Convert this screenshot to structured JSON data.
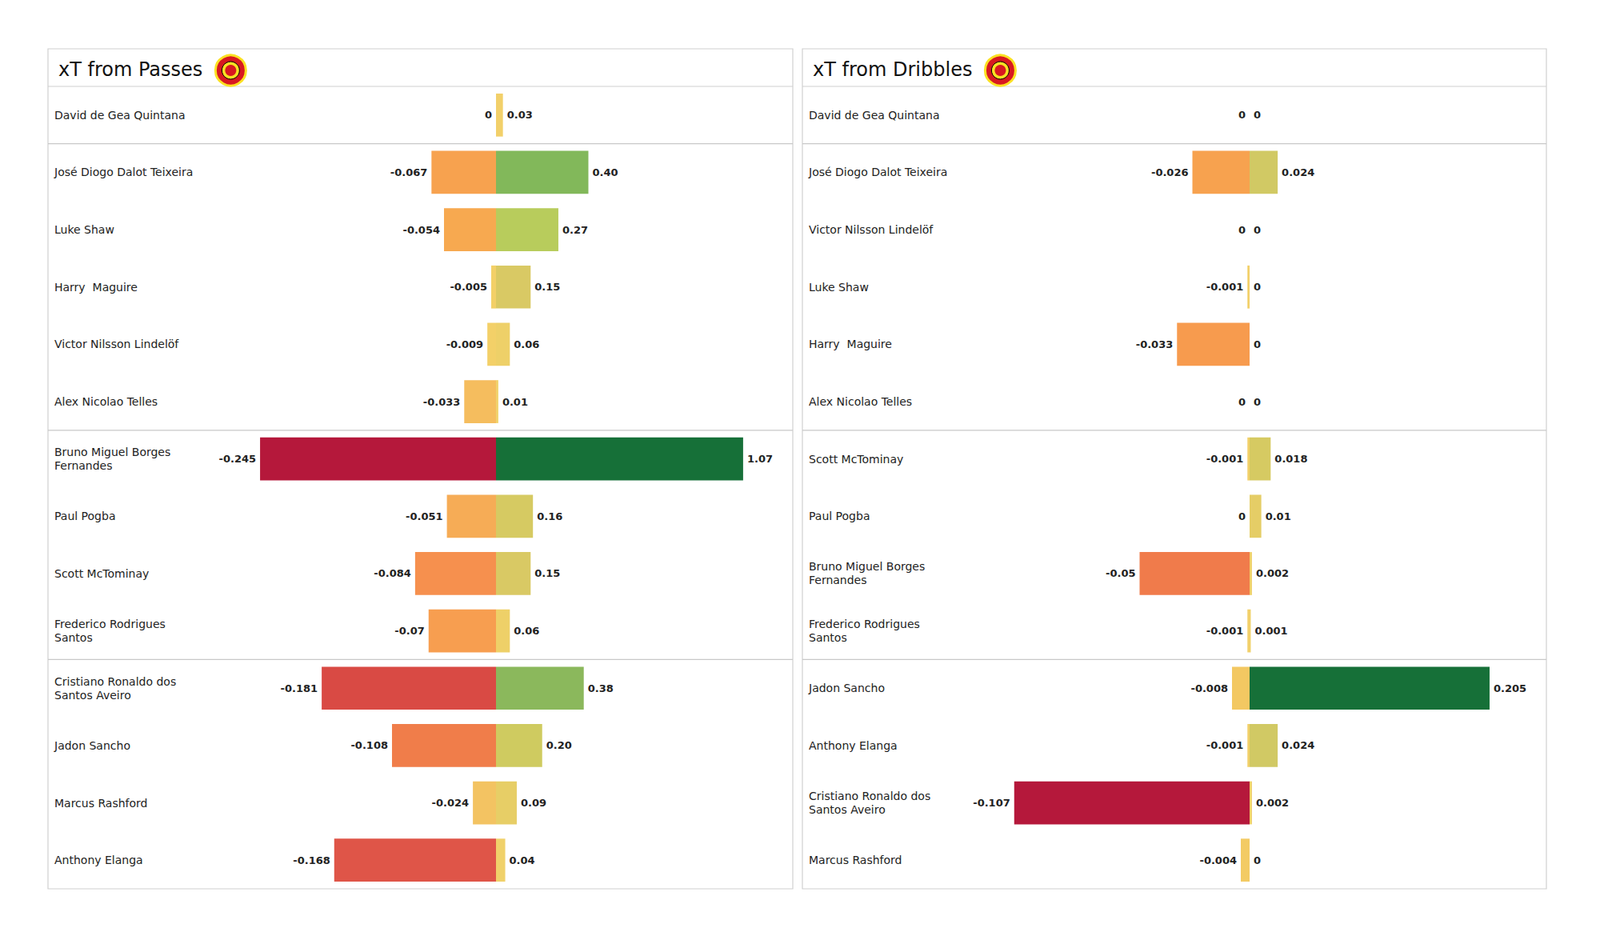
{
  "chart_data": [
    {
      "type": "bar",
      "title": "xT from Passes",
      "orientation": "horizontal",
      "data_labels": true,
      "tick_labels": "y",
      "grid": false,
      "categories": [
        "David de Gea Quintana",
        "José Diogo Dalot Teixeira",
        "Luke Shaw",
        "Harry  Maguire",
        "Victor Nilsson Lindelöf",
        "Alex Nicolao Telles",
        "Bruno Miguel Borges\nFernandes",
        "Paul Pogba",
        "Scott McTominay",
        "Frederico Rodrigues\nSantos",
        "Cristiano Ronaldo dos\nSantos Aveiro",
        "Jadon Sancho",
        "Marcus Rashford",
        "Anthony Elanga"
      ],
      "groups": [
        1,
        5,
        4,
        4
      ],
      "series": [
        {
          "values": [
            0,
            -0.067,
            -0.054,
            -0.005,
            -0.009,
            -0.033,
            -0.245,
            -0.051,
            -0.084,
            -0.07,
            -0.181,
            -0.108,
            -0.024,
            -0.168
          ],
          "colors": [
            "#f2d06a",
            "#f7a24f",
            "#f7a950",
            "#f3d068",
            "#f3d068",
            "#f5bd5e",
            "#b5183b",
            "#f6ac56",
            "#f6904e",
            "#f79e50",
            "#d94a44",
            "#f07d4a",
            "#f3c362",
            "#df5548"
          ],
          "xlim": [
            -0.265,
            0.265
          ]
        },
        {
          "values": [
            0.03,
            0.4,
            0.27,
            0.15,
            0.06,
            0.01,
            1.07,
            0.16,
            0.15,
            0.06,
            0.38,
            0.2,
            0.09,
            0.04
          ],
          "value_labels": [
            "0.03",
            "0.40",
            "0.27",
            "0.15",
            "0.06",
            "0.01",
            "1.07",
            "0.16",
            "0.15",
            "0.06",
            "0.38",
            "0.20",
            "0.09",
            "0.04"
          ],
          "colors": [
            "#f2d06a",
            "#82b85a",
            "#b8cc5c",
            "#d9c964",
            "#eed068",
            "#f1d26b",
            "#167038",
            "#d6ca62",
            "#d9c964",
            "#eed068",
            "#8bb85c",
            "#cfcb60",
            "#e7ce66",
            "#f0d16a"
          ],
          "xlim": [
            -1.105,
            1.105
          ]
        }
      ]
    },
    {
      "type": "bar",
      "title": "xT from Dribbles",
      "orientation": "horizontal",
      "data_labels": true,
      "tick_labels": "y",
      "grid": false,
      "categories": [
        "David de Gea Quintana",
        "José Diogo Dalot Teixeira",
        "Victor Nilsson Lindelöf",
        "Luke Shaw",
        "Harry  Maguire",
        "Alex Nicolao Telles",
        "Scott McTominay",
        "Paul Pogba",
        "Bruno Miguel Borges\nFernandes",
        "Frederico Rodrigues\nSantos",
        "Jadon Sancho",
        "Anthony Elanga",
        "Cristiano Ronaldo dos\nSantos Aveiro",
        "Marcus Rashford"
      ],
      "groups": [
        1,
        5,
        4,
        4
      ],
      "series": [
        {
          "values": [
            0,
            -0.026,
            0,
            -0.001,
            -0.033,
            0,
            -0.001,
            0,
            -0.05,
            -0.001,
            -0.008,
            -0.001,
            -0.107,
            -0.004
          ],
          "colors": [
            "#f2d06a",
            "#f7a24f",
            "#f2d06a",
            "#f2d06a",
            "#f79b4e",
            "#f2d06a",
            "#f2d06a",
            "#f2d06a",
            "#f07b4b",
            "#f2d06a",
            "#f3c862",
            "#f2d06a",
            "#b5183b",
            "#f3cb64"
          ],
          "xlim": [
            -0.116,
            0.116
          ]
        },
        {
          "values": [
            0,
            0.024,
            0,
            0,
            0,
            0,
            0.018,
            0.01,
            0.002,
            0.001,
            0.205,
            0.024,
            0.002,
            0
          ],
          "colors": [
            "#f2d06a",
            "#d1c964",
            "#f2d06a",
            "#f2d06a",
            "#f2d06a",
            "#f2d06a",
            "#d6ca62",
            "#e5cd66",
            "#efd16a",
            "#f0d16a",
            "#167038",
            "#d1c964",
            "#efd16a",
            "#f2d06a"
          ],
          "xlim": [
            -0.218,
            0.218
          ]
        }
      ]
    }
  ]
}
